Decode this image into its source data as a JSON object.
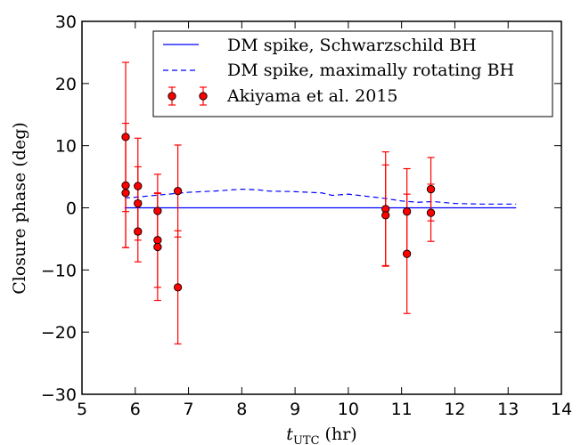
{
  "chart_data": {
    "type": "scatter",
    "xlabel_main": "t",
    "xlabel_sub": "UTC",
    "xlabel_unit": " (hr)",
    "ylabel": "Closure phase (deg)",
    "xlim": [
      5,
      14
    ],
    "ylim": [
      -30,
      30
    ],
    "xticks": [
      5,
      6,
      7,
      8,
      9,
      10,
      11,
      12,
      13,
      14
    ],
    "yticks": [
      -30,
      -20,
      -10,
      0,
      10,
      20,
      30
    ],
    "grid": false,
    "legend_position": "top-right",
    "series": [
      {
        "name": "DM spike, Schwarzschild BH",
        "kind": "line",
        "style": "solid",
        "color": "#0000ff",
        "x": [
          5.8,
          13.15
        ],
        "y": [
          0,
          0
        ]
      },
      {
        "name": "DM spike, maximally rotating BH",
        "kind": "line",
        "style": "dashed",
        "color": "#0000ff",
        "x": [
          5.8,
          6.0,
          6.5,
          7.0,
          7.5,
          8.0,
          8.3,
          8.5,
          9.0,
          9.5,
          9.7,
          10.0,
          10.5,
          10.7,
          11.0,
          11.3,
          11.6,
          12.0,
          12.5,
          13.0,
          13.15
        ],
        "y": [
          1.6,
          1.7,
          2.1,
          2.5,
          2.7,
          3.0,
          2.9,
          2.7,
          2.6,
          2.4,
          2.0,
          2.2,
          1.7,
          1.5,
          1.1,
          0.9,
          1.0,
          0.7,
          0.6,
          0.6,
          0.6
        ]
      },
      {
        "name": "Akiyama et al. 2015",
        "kind": "errorbar",
        "color": "#ff0000",
        "points": [
          {
            "x": 5.82,
            "y": 11.4,
            "err": 12.0
          },
          {
            "x": 5.82,
            "y": 3.6,
            "err": 10.0
          },
          {
            "x": 5.82,
            "y": 2.4,
            "err": 8.8
          },
          {
            "x": 6.05,
            "y": 3.5,
            "err": 7.7
          },
          {
            "x": 6.05,
            "y": 0.7,
            "err": 5.9
          },
          {
            "x": 6.05,
            "y": -3.8,
            "err": 4.9
          },
          {
            "x": 6.42,
            "y": -0.5,
            "err": 5.9
          },
          {
            "x": 6.42,
            "y": -5.2,
            "err": 7.6
          },
          {
            "x": 6.42,
            "y": -6.3,
            "err": 8.6
          },
          {
            "x": 6.8,
            "y": 2.7,
            "err": 7.4
          },
          {
            "x": 6.8,
            "y": -12.8,
            "err": 9.1
          },
          {
            "x": 10.7,
            "y": -0.2,
            "err": 9.2
          },
          {
            "x": 10.7,
            "y": -1.2,
            "err": 8.1
          },
          {
            "x": 11.1,
            "y": -0.6,
            "err": 6.9
          },
          {
            "x": 11.1,
            "y": -7.4,
            "err": 9.6
          },
          {
            "x": 11.55,
            "y": 3.0,
            "err": 5.1
          },
          {
            "x": 11.55,
            "y": -0.8,
            "err": 4.6
          }
        ]
      }
    ]
  }
}
